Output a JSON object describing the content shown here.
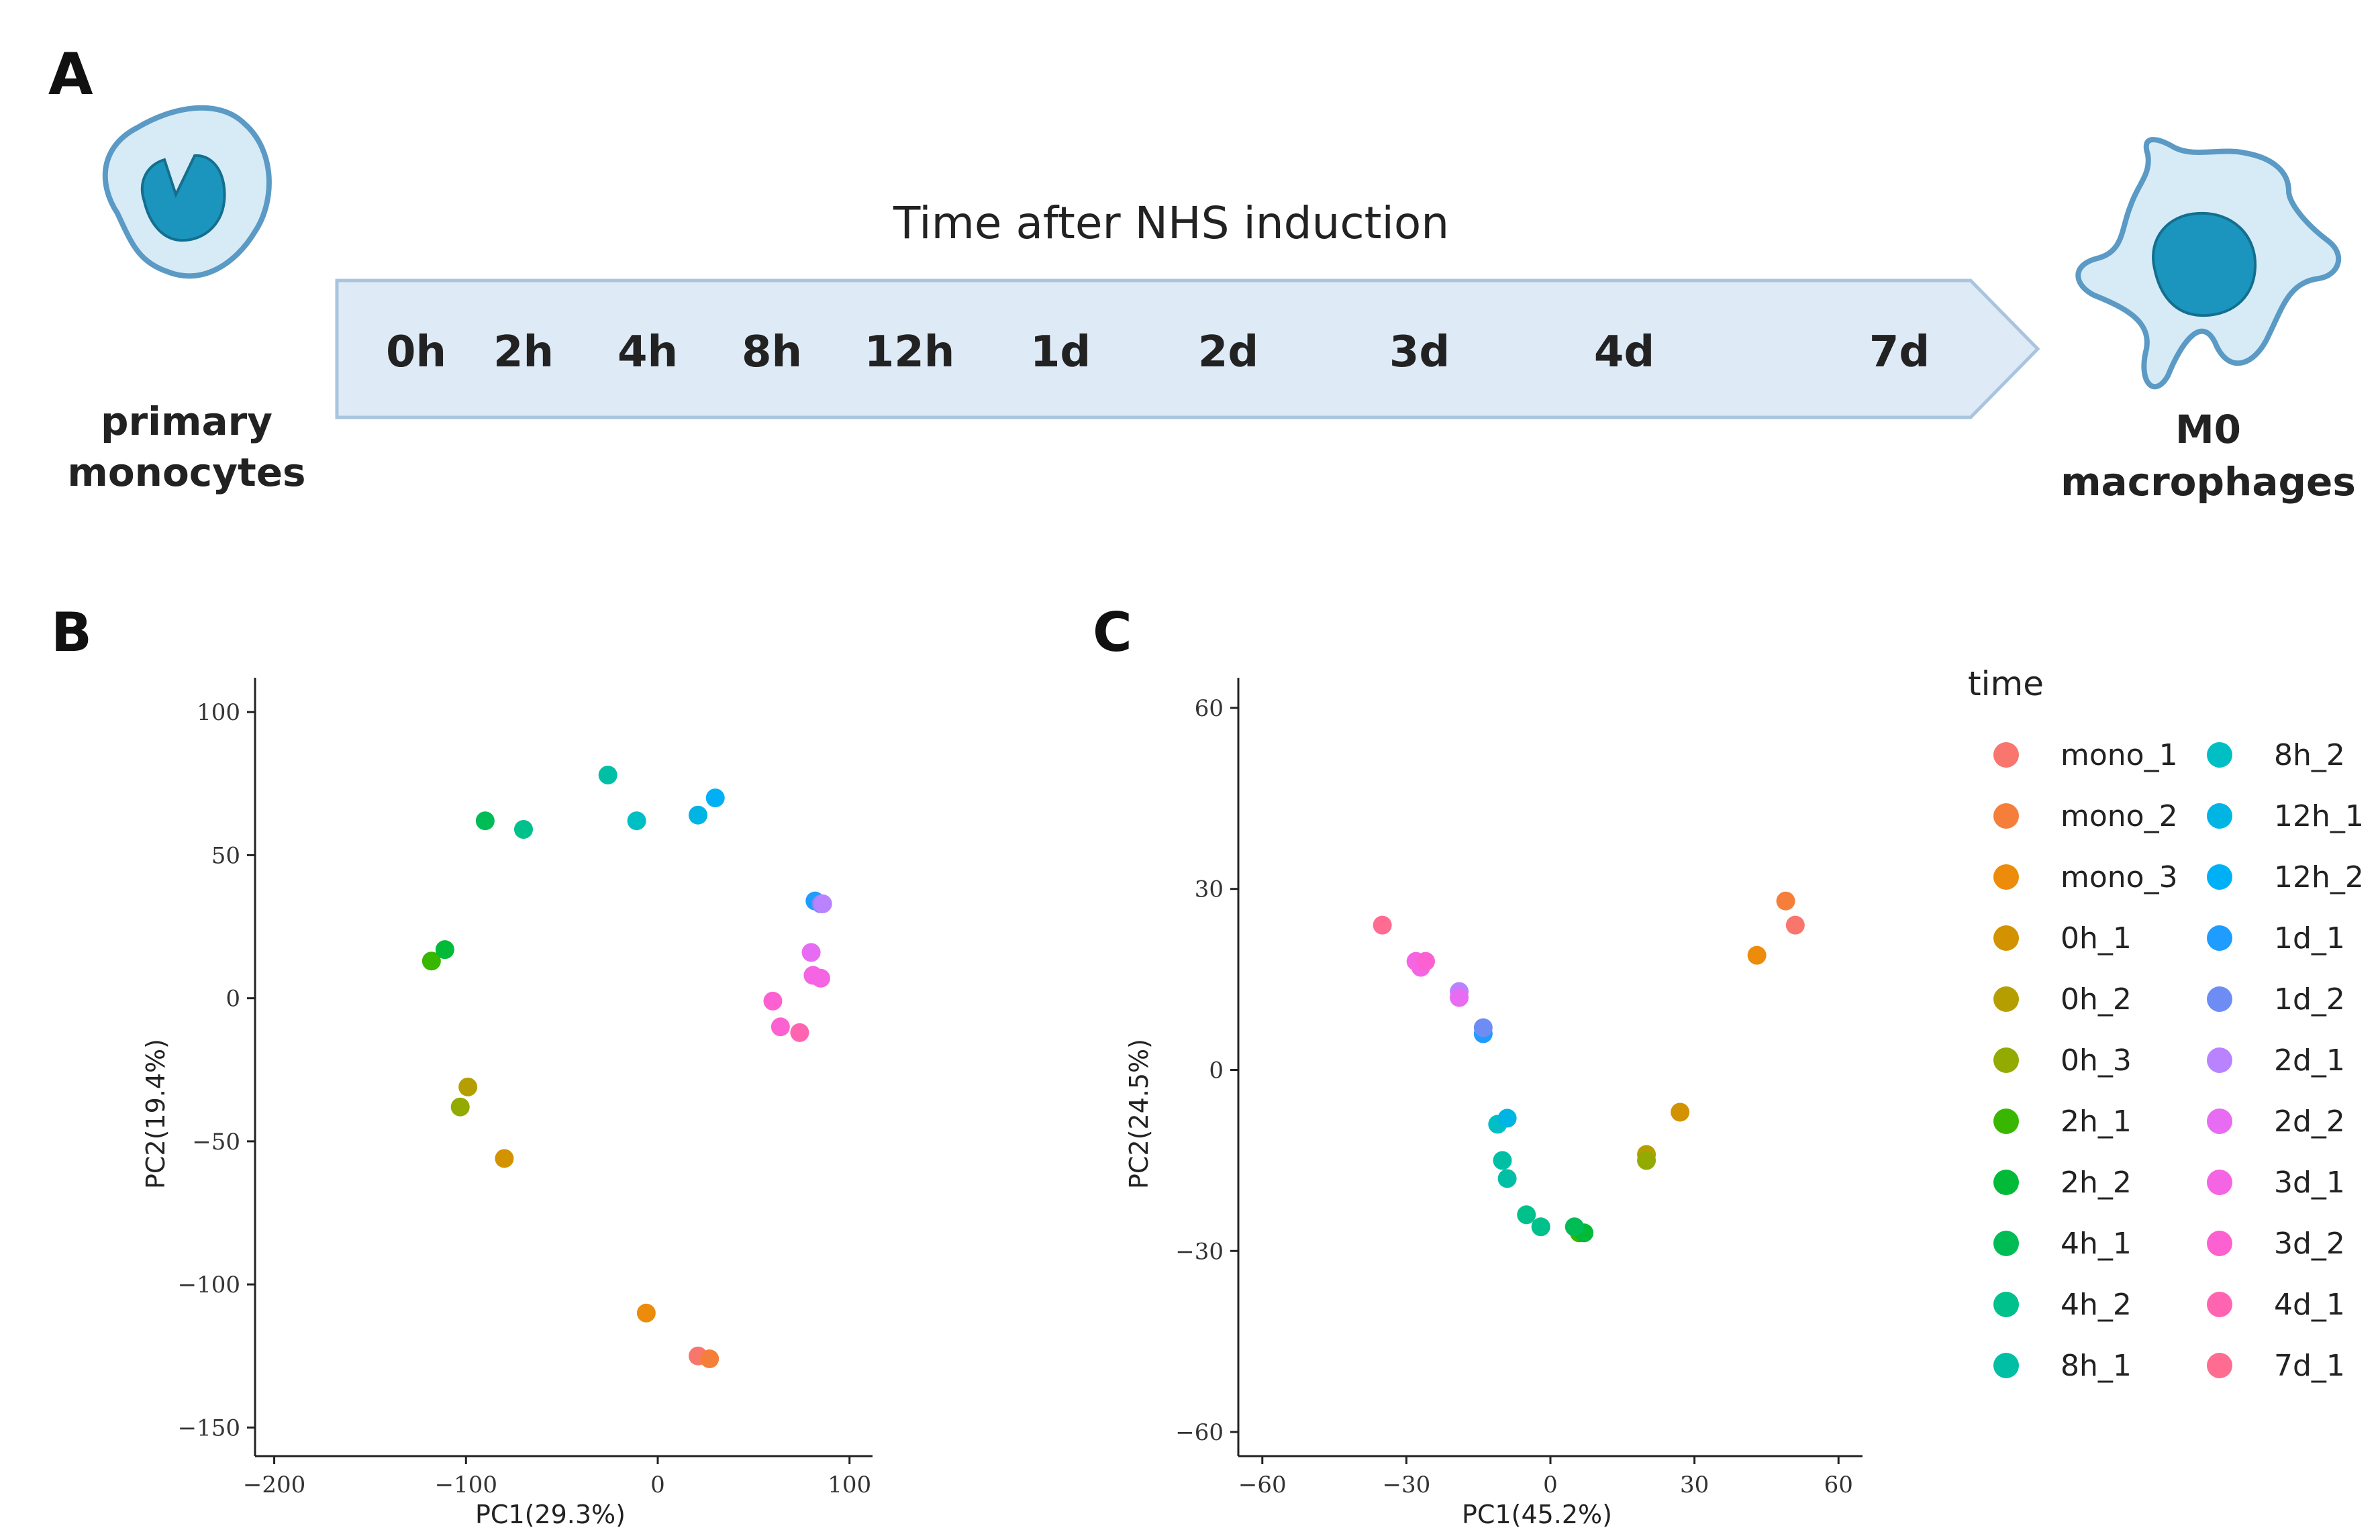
{
  "panel_labels": {
    "a": "A",
    "b": "B",
    "c": "C"
  },
  "panel_a": {
    "title": "Time after NHS induction",
    "timepoints": [
      "0h",
      "2h",
      "4h",
      "8h",
      "12h",
      "1d",
      "2d",
      "3d",
      "4d",
      "7d"
    ],
    "left_cell_label": [
      "primary",
      "monocytes"
    ],
    "right_cell_label": [
      "M0",
      "macrophages"
    ],
    "colors": {
      "arrow_fill": "#deebf7",
      "arrow_stroke": "#a9c4de",
      "cell_fill": "#d7ebf7",
      "cell_stroke": "#5b9ac4",
      "nucleus": "#1b95bd"
    }
  },
  "chart_data": [
    {
      "type": "scatter",
      "panel": "B",
      "xlabel": "PC1(29.3%)",
      "ylabel": "PC2(19.4%)",
      "xlim": [
        -210,
        112
      ],
      "ylim": [
        -160,
        112
      ],
      "xticks": [
        -200,
        -100,
        0,
        100
      ],
      "yticks": [
        100,
        50,
        0,
        -50,
        -100,
        -150
      ],
      "xtick_labels": [
        "−200",
        "−100",
        "0",
        "100"
      ],
      "ytick_labels": [
        "100",
        "50",
        "0",
        "−50",
        "−100",
        "−150"
      ],
      "grid": false,
      "points": [
        {
          "group": "mono_1",
          "x": 21,
          "y": -125
        },
        {
          "group": "mono_2",
          "x": 27,
          "y": -126
        },
        {
          "group": "mono_3",
          "x": -6,
          "y": -110
        },
        {
          "group": "0h_1",
          "x": -80,
          "y": -56
        },
        {
          "group": "0h_2",
          "x": -99,
          "y": -31
        },
        {
          "group": "0h_3",
          "x": -103,
          "y": -38
        },
        {
          "group": "2h_1",
          "x": -118,
          "y": 13
        },
        {
          "group": "2h_2",
          "x": -111,
          "y": 17
        },
        {
          "group": "4h_1",
          "x": -90,
          "y": 62
        },
        {
          "group": "4h_2",
          "x": -70,
          "y": 59
        },
        {
          "group": "8h_1",
          "x": -26,
          "y": 78
        },
        {
          "group": "8h_2",
          "x": -11,
          "y": 62
        },
        {
          "group": "12h_1",
          "x": 21,
          "y": 64
        },
        {
          "group": "12h_2",
          "x": 30,
          "y": 70
        },
        {
          "group": "1d_1",
          "x": 82,
          "y": 34
        },
        {
          "group": "1d_2",
          "x": 85,
          "y": 33
        },
        {
          "group": "2d_1",
          "x": 86,
          "y": 33
        },
        {
          "group": "2d_2",
          "x": 80,
          "y": 16
        },
        {
          "group": "3d_1",
          "x": 81,
          "y": 8
        },
        {
          "group": "3d_1",
          "x": 85,
          "y": 7
        },
        {
          "group": "3d_2",
          "x": 60,
          "y": -1
        },
        {
          "group": "3d_2",
          "x": 64,
          "y": -10
        },
        {
          "group": "4d_1",
          "x": 74,
          "y": -12
        }
      ]
    },
    {
      "type": "scatter",
      "panel": "C",
      "xlabel": "PC1(45.2%)",
      "ylabel": "PC2(24.5%)",
      "xlim": [
        -65,
        65
      ],
      "ylim": [
        -64,
        65
      ],
      "xticks": [
        -60,
        -30,
        0,
        30,
        60
      ],
      "yticks": [
        60,
        30,
        0,
        -30,
        -60
      ],
      "xtick_labels": [
        "−60",
        "−30",
        "0",
        "30",
        "60"
      ],
      "ytick_labels": [
        "60",
        "30",
        "0",
        "−30",
        "−60"
      ],
      "grid": false,
      "points": [
        {
          "group": "mono_1",
          "x": 51,
          "y": 24
        },
        {
          "group": "mono_2",
          "x": 49,
          "y": 28
        },
        {
          "group": "mono_3",
          "x": 43,
          "y": 19
        },
        {
          "group": "0h_1",
          "x": 27,
          "y": -7
        },
        {
          "group": "0h_2",
          "x": 20,
          "y": -14
        },
        {
          "group": "0h_3",
          "x": 20,
          "y": -15
        },
        {
          "group": "2h_1",
          "x": 6,
          "y": -27
        },
        {
          "group": "2h_2",
          "x": 7,
          "y": -27
        },
        {
          "group": "4h_1",
          "x": 5,
          "y": -26
        },
        {
          "group": "4h_2",
          "x": -2,
          "y": -26
        },
        {
          "group": "4h_2",
          "x": -5,
          "y": -24
        },
        {
          "group": "8h_1",
          "x": -9,
          "y": -18
        },
        {
          "group": "8h_1",
          "x": -10,
          "y": -15
        },
        {
          "group": "8h_2",
          "x": -11,
          "y": -9
        },
        {
          "group": "12h_1",
          "x": -9,
          "y": -8
        },
        {
          "group": "1d_1",
          "x": -14,
          "y": 6
        },
        {
          "group": "1d_2",
          "x": -14,
          "y": 7
        },
        {
          "group": "2d_1",
          "x": -19,
          "y": 13
        },
        {
          "group": "2d_2",
          "x": -19,
          "y": 12
        },
        {
          "group": "3d_1",
          "x": -28,
          "y": 18
        },
        {
          "group": "3d_1",
          "x": -27,
          "y": 17
        },
        {
          "group": "3d_2",
          "x": -26,
          "y": 18
        },
        {
          "group": "7d_1",
          "x": -35,
          "y": 24
        }
      ]
    }
  ],
  "legend": {
    "title": "time",
    "placement": "right",
    "items": [
      {
        "label": "mono_1",
        "color": "#f8766d"
      },
      {
        "label": "mono_2",
        "color": "#f57f3a"
      },
      {
        "label": "mono_3",
        "color": "#ec8c0a"
      },
      {
        "label": "0h_1",
        "color": "#d39200"
      },
      {
        "label": "0h_2",
        "color": "#b59f00"
      },
      {
        "label": "0h_3",
        "color": "#93aa00"
      },
      {
        "label": "2h_1",
        "color": "#39b600"
      },
      {
        "label": "2h_2",
        "color": "#00ba38"
      },
      {
        "label": "4h_1",
        "color": "#00bc55"
      },
      {
        "label": "4h_2",
        "color": "#00c08b"
      },
      {
        "label": "8h_1",
        "color": "#00bfa5"
      },
      {
        "label": "8h_2",
        "color": "#00bfc4"
      },
      {
        "label": "12h_1",
        "color": "#00b4e4"
      },
      {
        "label": "12h_2",
        "color": "#00b0f6"
      },
      {
        "label": "1d_1",
        "color": "#1e9cff"
      },
      {
        "label": "1d_2",
        "color": "#6e8df4"
      },
      {
        "label": "2d_1",
        "color": "#b983ff"
      },
      {
        "label": "2d_2",
        "color": "#e76bf3"
      },
      {
        "label": "3d_1",
        "color": "#f564e3"
      },
      {
        "label": "3d_2",
        "color": "#fd61d1"
      },
      {
        "label": "4d_1",
        "color": "#ff64b0"
      },
      {
        "label": "7d_1",
        "color": "#ff6c91"
      }
    ]
  }
}
